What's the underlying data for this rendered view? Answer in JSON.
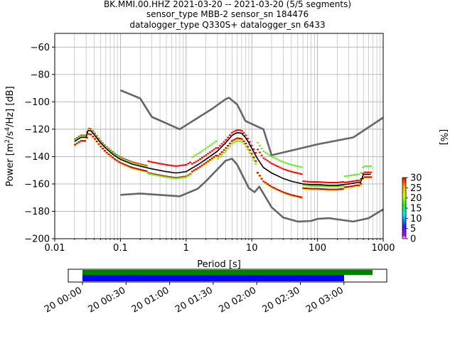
{
  "header": {
    "title_line1": "BK.MMI.00.HHZ   2021-03-20 -- 2021-03-20  (5/5 segments)",
    "title_line2": "sensor_type MBB-2 sensor_sn 184476",
    "title_line3": "datalogger_type Q330S+ datalogger_sn 6433"
  },
  "chart_data": {
    "type": "line",
    "title": "BK.MMI.00.HHZ   2021-03-20 -- 2021-03-20  (5/5 segments)",
    "subtitle": [
      "sensor_type MBB-2 sensor_sn 184476",
      "datalogger_type Q330S+ datalogger_sn 6433"
    ],
    "xlabel": "Period [s]",
    "ylabel": "Power [m²/s⁴/Hz] [dB]",
    "xscale": "log",
    "xlim": [
      0.01,
      1000
    ],
    "ylim": [
      -200,
      -50
    ],
    "xticks": [
      0.01,
      0.1,
      1,
      10,
      100,
      1000
    ],
    "xtick_labels": [
      "0.01",
      "0.1",
      "1",
      "10",
      "100",
      "1000"
    ],
    "yticks": [
      -200,
      -180,
      -160,
      -140,
      -120,
      -100,
      -80,
      -60
    ],
    "grid": true,
    "colorbar": {
      "label": "[%]",
      "ticks": [
        0,
        5,
        10,
        15,
        20,
        25,
        30
      ],
      "min": 0,
      "max": 30
    },
    "series": [
      {
        "color": "#666666",
        "x": [
          0.1,
          0.2,
          0.3,
          0.8,
          2.5,
          4.0,
          4.5,
          6.0,
          8.0,
          15.0,
          20.0,
          100.0,
          350.0,
          1000.0
        ],
        "y": [
          -91.5,
          -97.5,
          -111,
          -120,
          -105,
          -98,
          -97,
          -102,
          -114,
          -120,
          -139,
          -131,
          -126,
          -111.5
        ]
      },
      {
        "color": "#666666",
        "x": [
          0.1,
          0.2,
          0.8,
          1.5,
          2.0,
          4.0,
          5.0,
          6.0,
          9.0,
          11.0,
          13.0,
          20.0,
          30.0,
          50.0,
          80.0,
          100.0,
          150.0,
          350.0,
          600.0,
          1000.0
        ],
        "y": [
          -168,
          -167,
          -169,
          -163.5,
          -158,
          -143,
          -141.5,
          -146,
          -163,
          -166,
          -162,
          -177,
          -184.5,
          -187.5,
          -187,
          -185.5,
          -185,
          -187.5,
          -185,
          -178.5
        ]
      },
      {
        "color": "#000000",
        "x": [
          0.02,
          0.025,
          0.03,
          0.032,
          0.035,
          0.04,
          0.05,
          0.06,
          0.08,
          0.1,
          0.15,
          0.2,
          0.3,
          0.5,
          0.7,
          1.0,
          1.5,
          2.0,
          3.0,
          4.0,
          5.0,
          6.0,
          7.0,
          8.0,
          9.0,
          10.0,
          12.0,
          15.0,
          20.0,
          30.0,
          40.0,
          60.0,
          80.0,
          100.0,
          150.0,
          200.0,
          300.0,
          400.0,
          450.0,
          500.0,
          650.0
        ],
        "y": [
          -129,
          -126,
          -126,
          -121,
          -121,
          -124,
          -130,
          -134,
          -139,
          -142,
          -145.5,
          -147,
          -149,
          -151,
          -152,
          -151,
          -146,
          -142,
          -136,
          -130,
          -124.5,
          -122.5,
          -123,
          -126,
          -130,
          -134,
          -141,
          -148,
          -152,
          -156,
          -158,
          -160,
          -160.5,
          -160.5,
          -161,
          -161,
          -160,
          -159,
          -159,
          -153,
          -153
        ]
      }
    ]
  },
  "timeline": {
    "tick_labels": [
      "20 00:00",
      "20 00:30",
      "20 01:00",
      "20 01:30",
      "20 02:00",
      "20 02:30",
      "20 03:00"
    ],
    "green_bar_color": "#008000",
    "blue_bar_color": "#0000ff"
  }
}
